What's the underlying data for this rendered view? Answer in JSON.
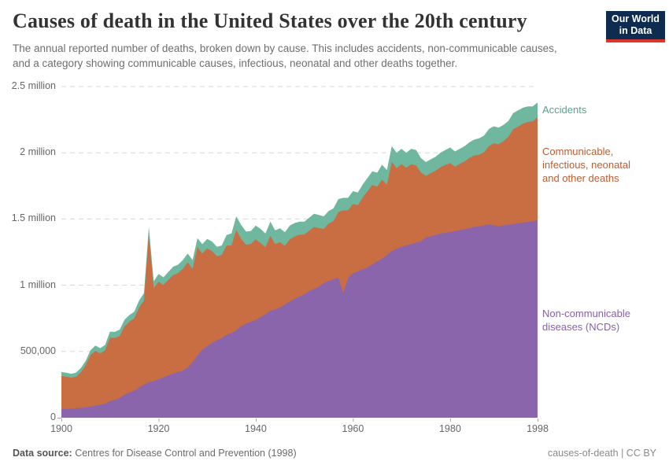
{
  "header": {
    "title": "Causes of death in the United States over the 20th century",
    "subtitle": "The annual reported number of deaths, broken down by cause. This includes accidents, non-communicable causes, and a category showing communicable causes, infectious, neonatal and other deaths together.",
    "logo": {
      "line1": "Our World",
      "line2": "in Data",
      "bg_color": "#0d2c4f",
      "accent_color": "#dc352c"
    }
  },
  "chart_data": {
    "type": "area",
    "stacked": true,
    "title": "Causes of death in the United States over the 20th century",
    "values_unit": "deaths per year, thousands",
    "grid": "horizontal dashed",
    "xlim": [
      1900,
      1998
    ],
    "ylim": [
      0,
      2500
    ],
    "x_ticks": [
      1900,
      1920,
      1940,
      1960,
      1980,
      1998
    ],
    "y_ticks": [
      {
        "value": 0,
        "label": "0"
      },
      {
        "value": 500,
        "label": "500,000"
      },
      {
        "value": 1000,
        "label": "1 million"
      },
      {
        "value": 1500,
        "label": "1.5 million"
      },
      {
        "value": 2000,
        "label": "2 million"
      },
      {
        "value": 2500,
        "label": "2.5 million"
      }
    ],
    "x": [
      1900,
      1901,
      1902,
      1903,
      1904,
      1905,
      1906,
      1907,
      1908,
      1909,
      1910,
      1911,
      1912,
      1913,
      1914,
      1915,
      1916,
      1917,
      1918,
      1919,
      1920,
      1921,
      1922,
      1923,
      1924,
      1925,
      1926,
      1927,
      1928,
      1929,
      1930,
      1931,
      1932,
      1933,
      1934,
      1935,
      1936,
      1937,
      1938,
      1939,
      1940,
      1941,
      1942,
      1943,
      1944,
      1945,
      1946,
      1947,
      1948,
      1949,
      1950,
      1951,
      1952,
      1953,
      1954,
      1955,
      1956,
      1957,
      1958,
      1959,
      1960,
      1961,
      1962,
      1963,
      1964,
      1965,
      1966,
      1967,
      1968,
      1969,
      1970,
      1971,
      1972,
      1973,
      1974,
      1975,
      1976,
      1977,
      1978,
      1979,
      1980,
      1981,
      1982,
      1983,
      1984,
      1985,
      1986,
      1987,
      1988,
      1989,
      1990,
      1991,
      1992,
      1993,
      1994,
      1995,
      1996,
      1997,
      1998
    ],
    "series": [
      {
        "id": "ncd",
        "name": "Non-communicable diseases (NCDs)",
        "color": "#8b65ab",
        "label_color": "#8960a8",
        "values": [
          65,
          67,
          69,
          71,
          74,
          78,
          85,
          92,
          98,
          105,
          125,
          135,
          150,
          175,
          190,
          205,
          228,
          250,
          268,
          278,
          290,
          305,
          320,
          332,
          345,
          355,
          380,
          420,
          470,
          515,
          540,
          565,
          585,
          600,
          625,
          640,
          660,
          690,
          710,
          725,
          738,
          760,
          780,
          808,
          818,
          832,
          855,
          877,
          897,
          916,
          932,
          956,
          972,
          988,
          1016,
          1032,
          1046,
          1058,
          940,
          1052,
          1090,
          1105,
          1120,
          1135,
          1158,
          1180,
          1200,
          1228,
          1258,
          1275,
          1290,
          1302,
          1312,
          1322,
          1332,
          1360,
          1370,
          1380,
          1390,
          1396,
          1402,
          1408,
          1416,
          1424,
          1432,
          1440,
          1446,
          1452,
          1460,
          1452,
          1446,
          1452,
          1456,
          1462,
          1468,
          1473,
          1478,
          1484,
          1490
        ]
      },
      {
        "id": "comm",
        "name": "Communicable, infectious, neonatal and other deaths",
        "color": "#c96d42",
        "label_color": "#c05b31",
        "values": [
          250,
          243,
          233,
          238,
          269,
          318,
          387,
          413,
          387,
          403,
          479,
          467,
          467,
          515,
          535,
          545,
          604,
          634,
          1115,
          699,
          737,
          697,
          720,
          745,
          746,
          769,
          792,
          703,
          817,
          725,
          738,
          693,
          635,
          628,
          675,
          660,
          758,
          660,
          595,
          587,
          608,
          558,
          506,
          565,
          493,
          494,
          441,
          469,
          471,
          465,
          451,
          455,
          468,
          444,
          409,
          433,
          438,
          494,
          625,
          513,
          524,
          499,
          541,
          574,
          598,
          564,
          598,
          531,
          674,
          608,
          625,
          585,
          602,
          582,
          519,
          466,
          476,
          484,
          501,
          512,
          520,
          487,
          501,
          511,
          530,
          539,
          540,
          552,
          591,
          620,
          619,
          636,
          665,
          716,
          730,
          747,
          755,
          753,
          778
        ]
      },
      {
        "id": "acc",
        "name": "Accidents",
        "color": "#6fb79e",
        "label_color": "#58a48a",
        "values": [
          30,
          30,
          30,
          31,
          32,
          34,
          38,
          40,
          40,
          42,
          46,
          46,
          48,
          50,
          50,
          50,
          53,
          56,
          57,
          53,
          58,
          58,
          60,
          63,
          64,
          66,
          68,
          67,
          68,
          70,
          72,
          72,
          70,
          72,
          80,
          90,
          102,
          105,
          100,
          98,
          104,
          107,
          104,
          107,
          104,
          104,
          104,
          104,
          102,
          99,
          97,
          99,
          100,
          98,
          95,
          95,
          96,
          98,
          95,
          95,
          96,
          96,
          99,
          101,
          104,
          106,
          112,
          111,
          118,
          117,
          115,
          113,
          116,
          116,
          109,
          104,
          104,
          106,
          109,
          112,
          118,
          115,
          113,
          115,
          118,
          121,
          124,
          126,
          129,
          128,
          125,
          122,
          119,
          122,
          122,
          120,
          117,
          113,
          112
        ]
      }
    ],
    "annotations": [
      "1918 influenza pandemic spike",
      "1957-58 reclassification notch in NCD band",
      "1968 influenza peak above 2 million"
    ]
  },
  "footer": {
    "datasource_label": "Data source:",
    "datasource_text": " Centres for Disease Control and Prevention (1998)",
    "attribution": "causes-of-death | CC BY"
  }
}
